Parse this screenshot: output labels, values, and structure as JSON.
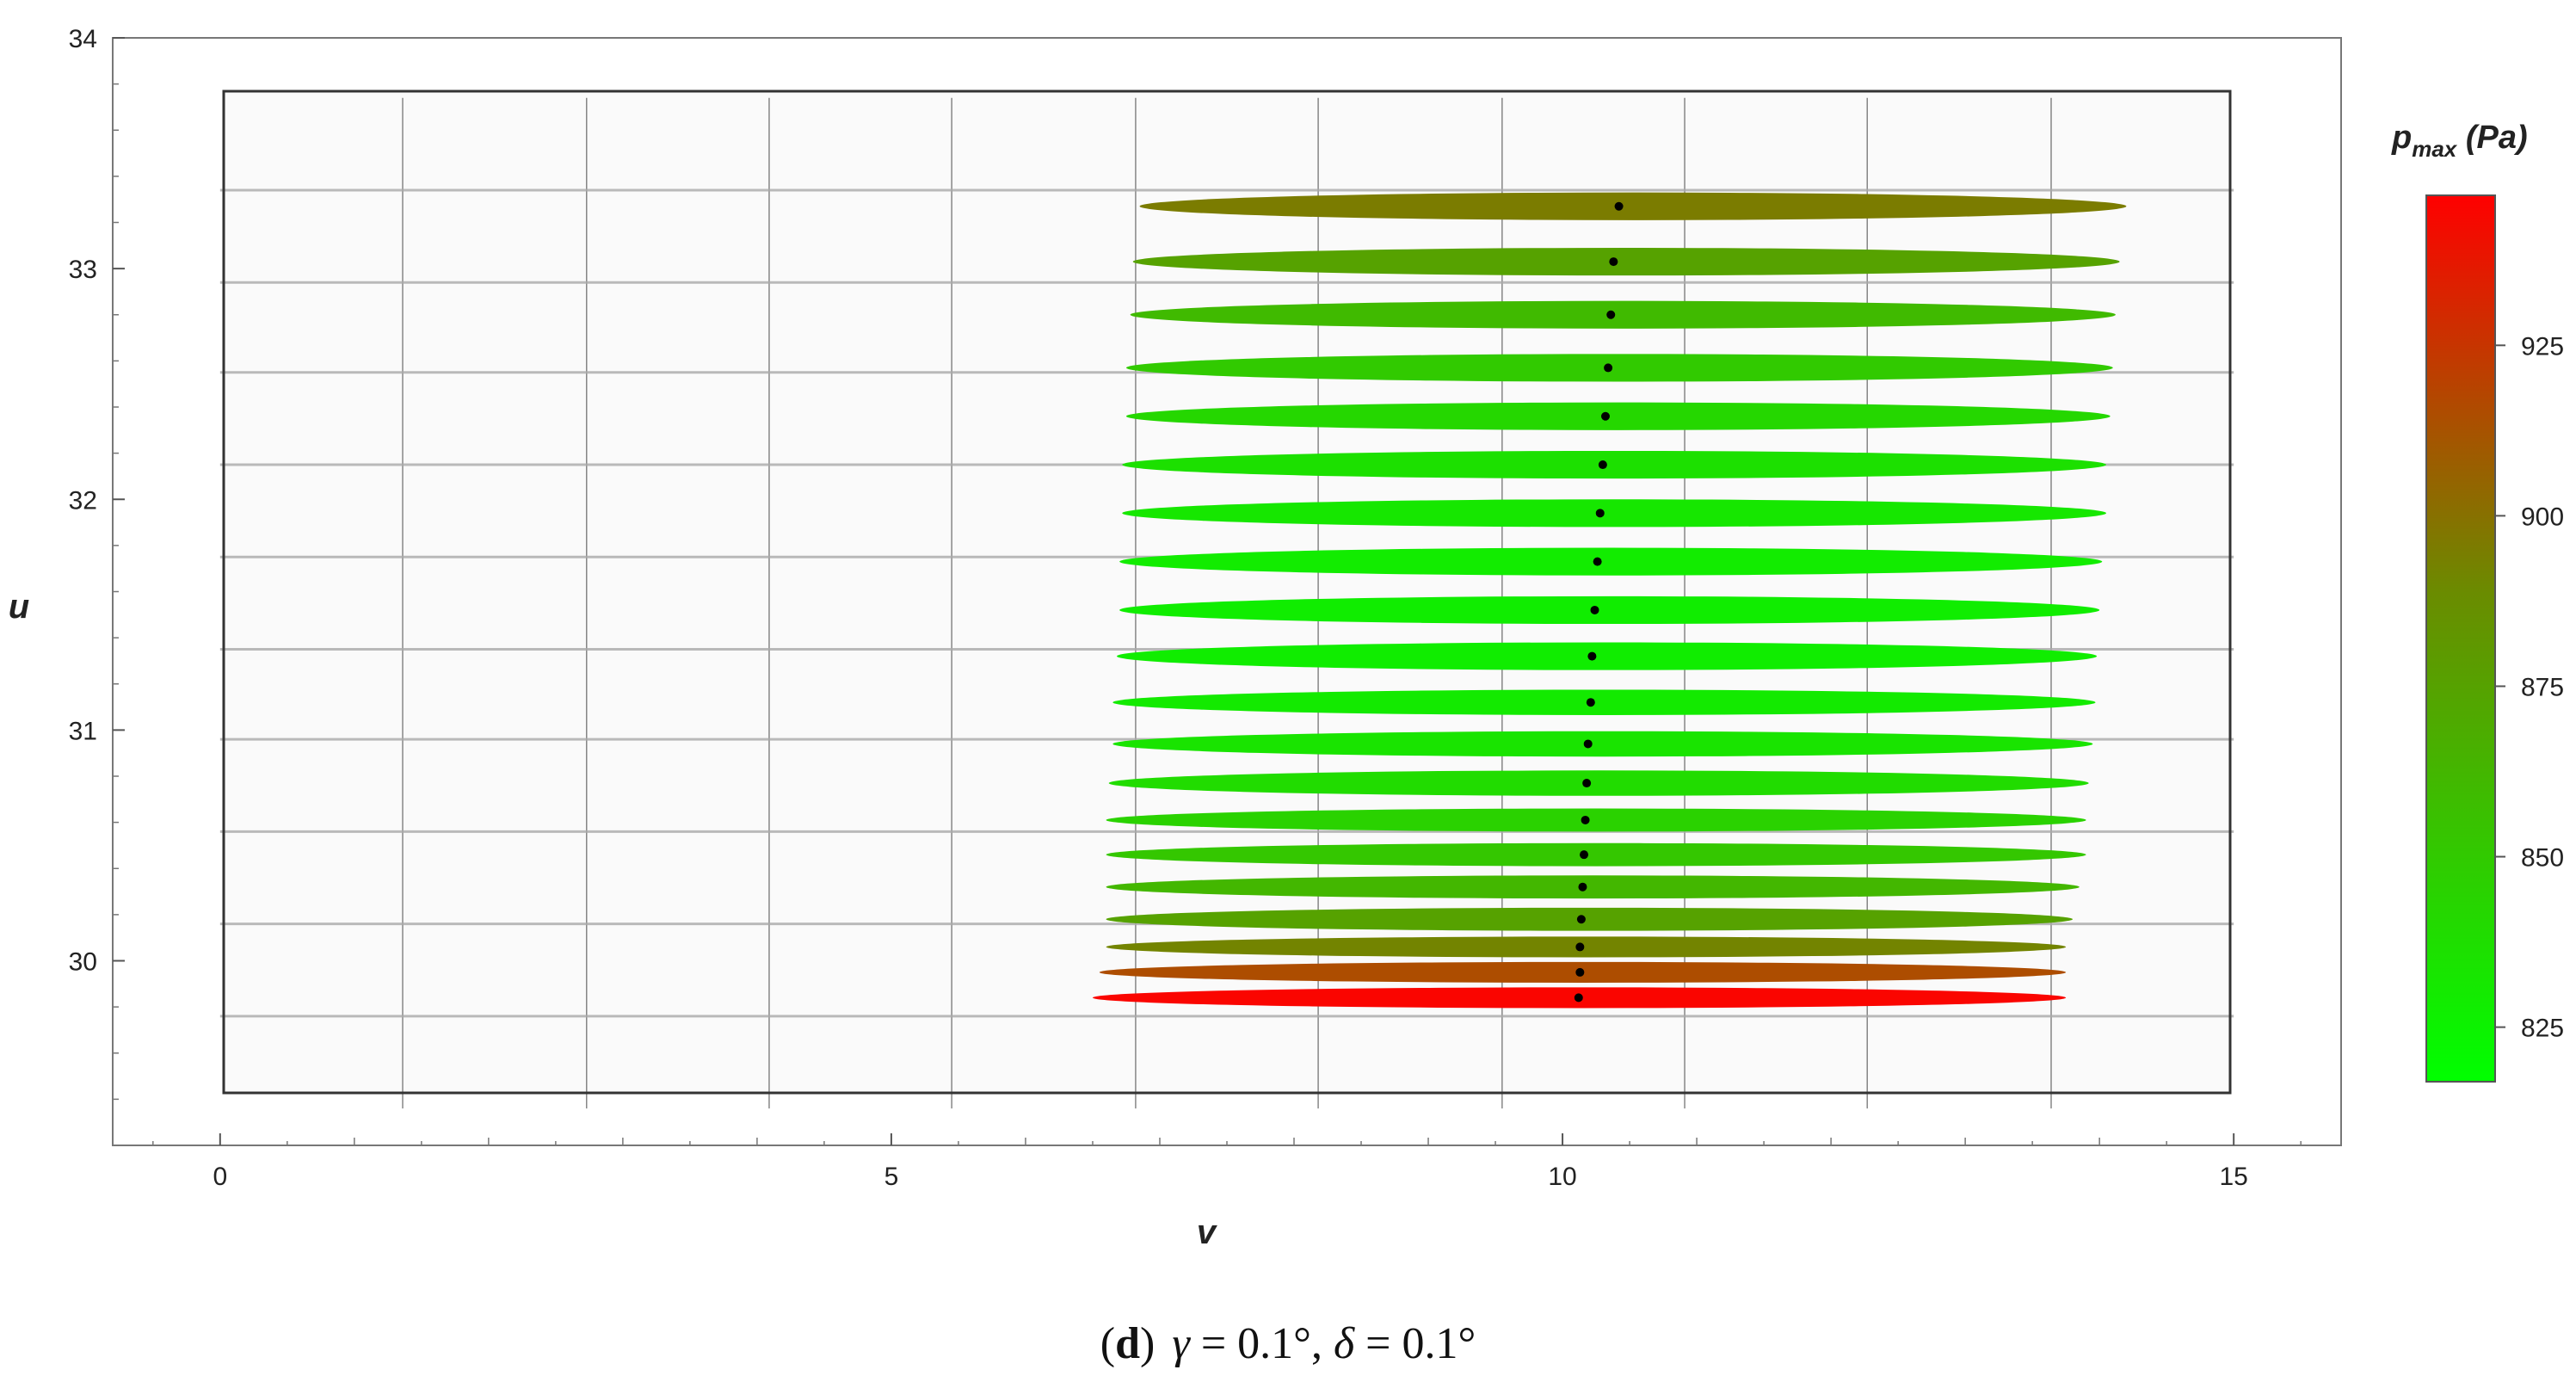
{
  "caption": {
    "open_paren": "(",
    "letter": "d",
    "close_paren": ")",
    "gamma_symbol": "γ",
    "gamma_text": " = 0.1°, ",
    "delta_symbol": "δ",
    "delta_text": " = 0.1°"
  },
  "colorbar": {
    "title_main": "p",
    "title_sub": "max",
    "title_unit": " (Pa)",
    "range": [
      817,
      947
    ],
    "ticks": [
      825,
      850,
      875,
      900,
      925
    ],
    "tick_labels": [
      "825",
      "850",
      "875",
      "900",
      "925"
    ],
    "color_low": "#00ff00",
    "color_mid": "#6a8c00",
    "color_high": "#ff0000"
  },
  "chart_data": {
    "type": "scatter",
    "title": "",
    "xlabel": "v",
    "ylabel": "u",
    "xlim": [
      -0.8,
      15.8
    ],
    "ylim": [
      29.2,
      34.0
    ],
    "frame_x": [
      0,
      15
    ],
    "frame_y": [
      29.36,
      33.74
    ],
    "xticks": [
      0,
      5,
      10,
      15
    ],
    "xtick_labels": [
      "0",
      "5",
      "10",
      "15"
    ],
    "yticks": [
      30,
      31,
      32,
      33,
      34
    ],
    "ytick_labels": [
      "30",
      "31",
      "32",
      "33",
      "34"
    ],
    "grid": true,
    "grid_x": [
      1.36,
      2.73,
      4.09,
      5.45,
      6.82,
      8.18,
      9.55,
      10.91,
      12.27,
      13.64
    ],
    "grid_y": [
      29.76,
      30.16,
      30.56,
      30.96,
      31.35,
      31.75,
      32.15,
      32.55,
      32.94,
      33.34
    ],
    "point_color": "#000000",
    "legend": "colorbar-right",
    "series": [
      {
        "u": 29.84,
        "v_center": 10.12,
        "v_min": 6.5,
        "v_max": 13.75,
        "half_height_u": 0.045,
        "p_max": 945
      },
      {
        "u": 29.95,
        "v_center": 10.13,
        "v_min": 6.55,
        "v_max": 13.75,
        "half_height_u": 0.045,
        "p_max": 915
      },
      {
        "u": 30.06,
        "v_center": 10.13,
        "v_min": 6.6,
        "v_max": 13.75,
        "half_height_u": 0.045,
        "p_max": 892
      },
      {
        "u": 30.18,
        "v_center": 10.14,
        "v_min": 6.6,
        "v_max": 13.8,
        "half_height_u": 0.05,
        "p_max": 875
      },
      {
        "u": 30.32,
        "v_center": 10.15,
        "v_min": 6.6,
        "v_max": 13.85,
        "half_height_u": 0.05,
        "p_max": 862
      },
      {
        "u": 30.46,
        "v_center": 10.16,
        "v_min": 6.6,
        "v_max": 13.9,
        "half_height_u": 0.05,
        "p_max": 852
      },
      {
        "u": 30.61,
        "v_center": 10.17,
        "v_min": 6.6,
        "v_max": 13.9,
        "half_height_u": 0.05,
        "p_max": 845
      },
      {
        "u": 30.77,
        "v_center": 10.18,
        "v_min": 6.62,
        "v_max": 13.92,
        "half_height_u": 0.055,
        "p_max": 839
      },
      {
        "u": 30.94,
        "v_center": 10.19,
        "v_min": 6.65,
        "v_max": 13.95,
        "half_height_u": 0.055,
        "p_max": 834
      },
      {
        "u": 31.12,
        "v_center": 10.21,
        "v_min": 6.65,
        "v_max": 13.97,
        "half_height_u": 0.055,
        "p_max": 830
      },
      {
        "u": 31.32,
        "v_center": 10.22,
        "v_min": 6.68,
        "v_max": 13.98,
        "half_height_u": 0.06,
        "p_max": 828
      },
      {
        "u": 31.52,
        "v_center": 10.24,
        "v_min": 6.7,
        "v_max": 14.0,
        "half_height_u": 0.06,
        "p_max": 828
      },
      {
        "u": 31.73,
        "v_center": 10.26,
        "v_min": 6.7,
        "v_max": 14.02,
        "half_height_u": 0.06,
        "p_max": 829
      },
      {
        "u": 31.94,
        "v_center": 10.28,
        "v_min": 6.72,
        "v_max": 14.05,
        "half_height_u": 0.06,
        "p_max": 832
      },
      {
        "u": 32.15,
        "v_center": 10.3,
        "v_min": 6.72,
        "v_max": 14.05,
        "half_height_u": 0.06,
        "p_max": 836
      },
      {
        "u": 32.36,
        "v_center": 10.32,
        "v_min": 6.75,
        "v_max": 14.08,
        "half_height_u": 0.06,
        "p_max": 842
      },
      {
        "u": 32.57,
        "v_center": 10.34,
        "v_min": 6.75,
        "v_max": 14.1,
        "half_height_u": 0.06,
        "p_max": 850
      },
      {
        "u": 32.8,
        "v_center": 10.36,
        "v_min": 6.78,
        "v_max": 14.12,
        "half_height_u": 0.06,
        "p_max": 860
      },
      {
        "u": 33.03,
        "v_center": 10.38,
        "v_min": 6.8,
        "v_max": 14.15,
        "half_height_u": 0.06,
        "p_max": 875
      },
      {
        "u": 33.27,
        "v_center": 10.42,
        "v_min": 6.85,
        "v_max": 14.2,
        "half_height_u": 0.06,
        "p_max": 895
      }
    ]
  }
}
